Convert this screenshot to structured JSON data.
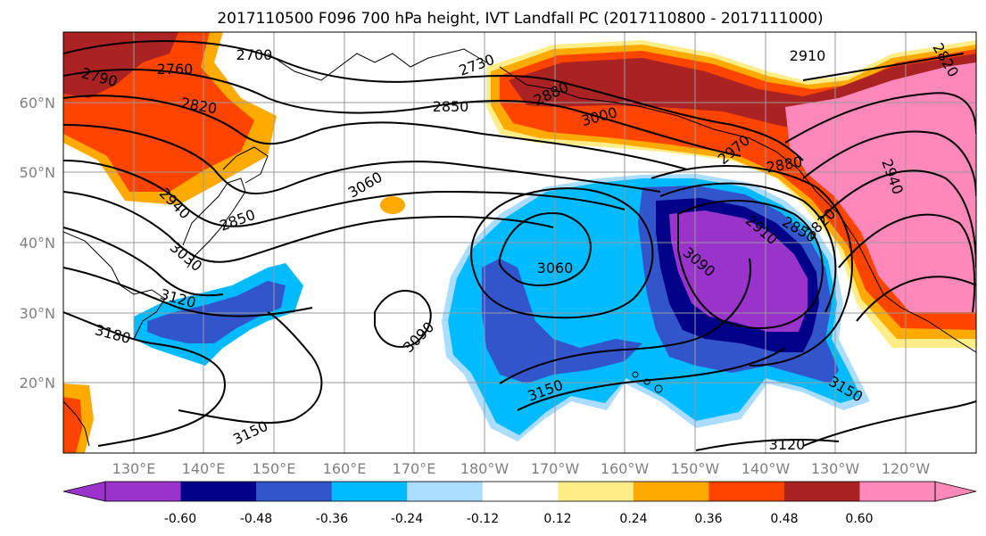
{
  "title": "2017110500 F096 700 hPa height, IVT Landfall PC (2017110800 - 2017111000)",
  "map": {
    "lat_labels": [
      "60°N",
      "50°N",
      "40°N",
      "30°N",
      "20°N"
    ],
    "lon_labels": [
      "130°E",
      "140°E",
      "150°E",
      "160°E",
      "170°E",
      "180°W",
      "170°W",
      "160°W",
      "150°W",
      "140°W",
      "130°W",
      "120°W"
    ],
    "contour_labels": [
      "2790",
      "2760",
      "2700",
      "2730",
      "2820",
      "2850",
      "2880",
      "3000",
      "2910",
      "2970",
      "2880",
      "2940",
      "3060",
      "2940",
      "2850",
      "3060",
      "3090",
      "2910",
      "2850",
      "2820",
      "3030",
      "3120",
      "3180",
      "3090",
      "3150",
      "3150",
      "3150",
      "3120",
      "2820"
    ]
  },
  "colorbar": {
    "tick_labels": [
      "-0.60",
      "-0.48",
      "-0.36",
      "-0.24",
      "-0.12",
      "0.12",
      "0.24",
      "0.36",
      "0.48",
      "0.60"
    ],
    "colors": [
      "#9933cc",
      "#000088",
      "#3355cc",
      "#00bbff",
      "#aaddff",
      "#ffffff",
      "#ffee88",
      "#ffaa00",
      "#ff4400",
      "#aa2222",
      "#ff88bb"
    ]
  }
}
